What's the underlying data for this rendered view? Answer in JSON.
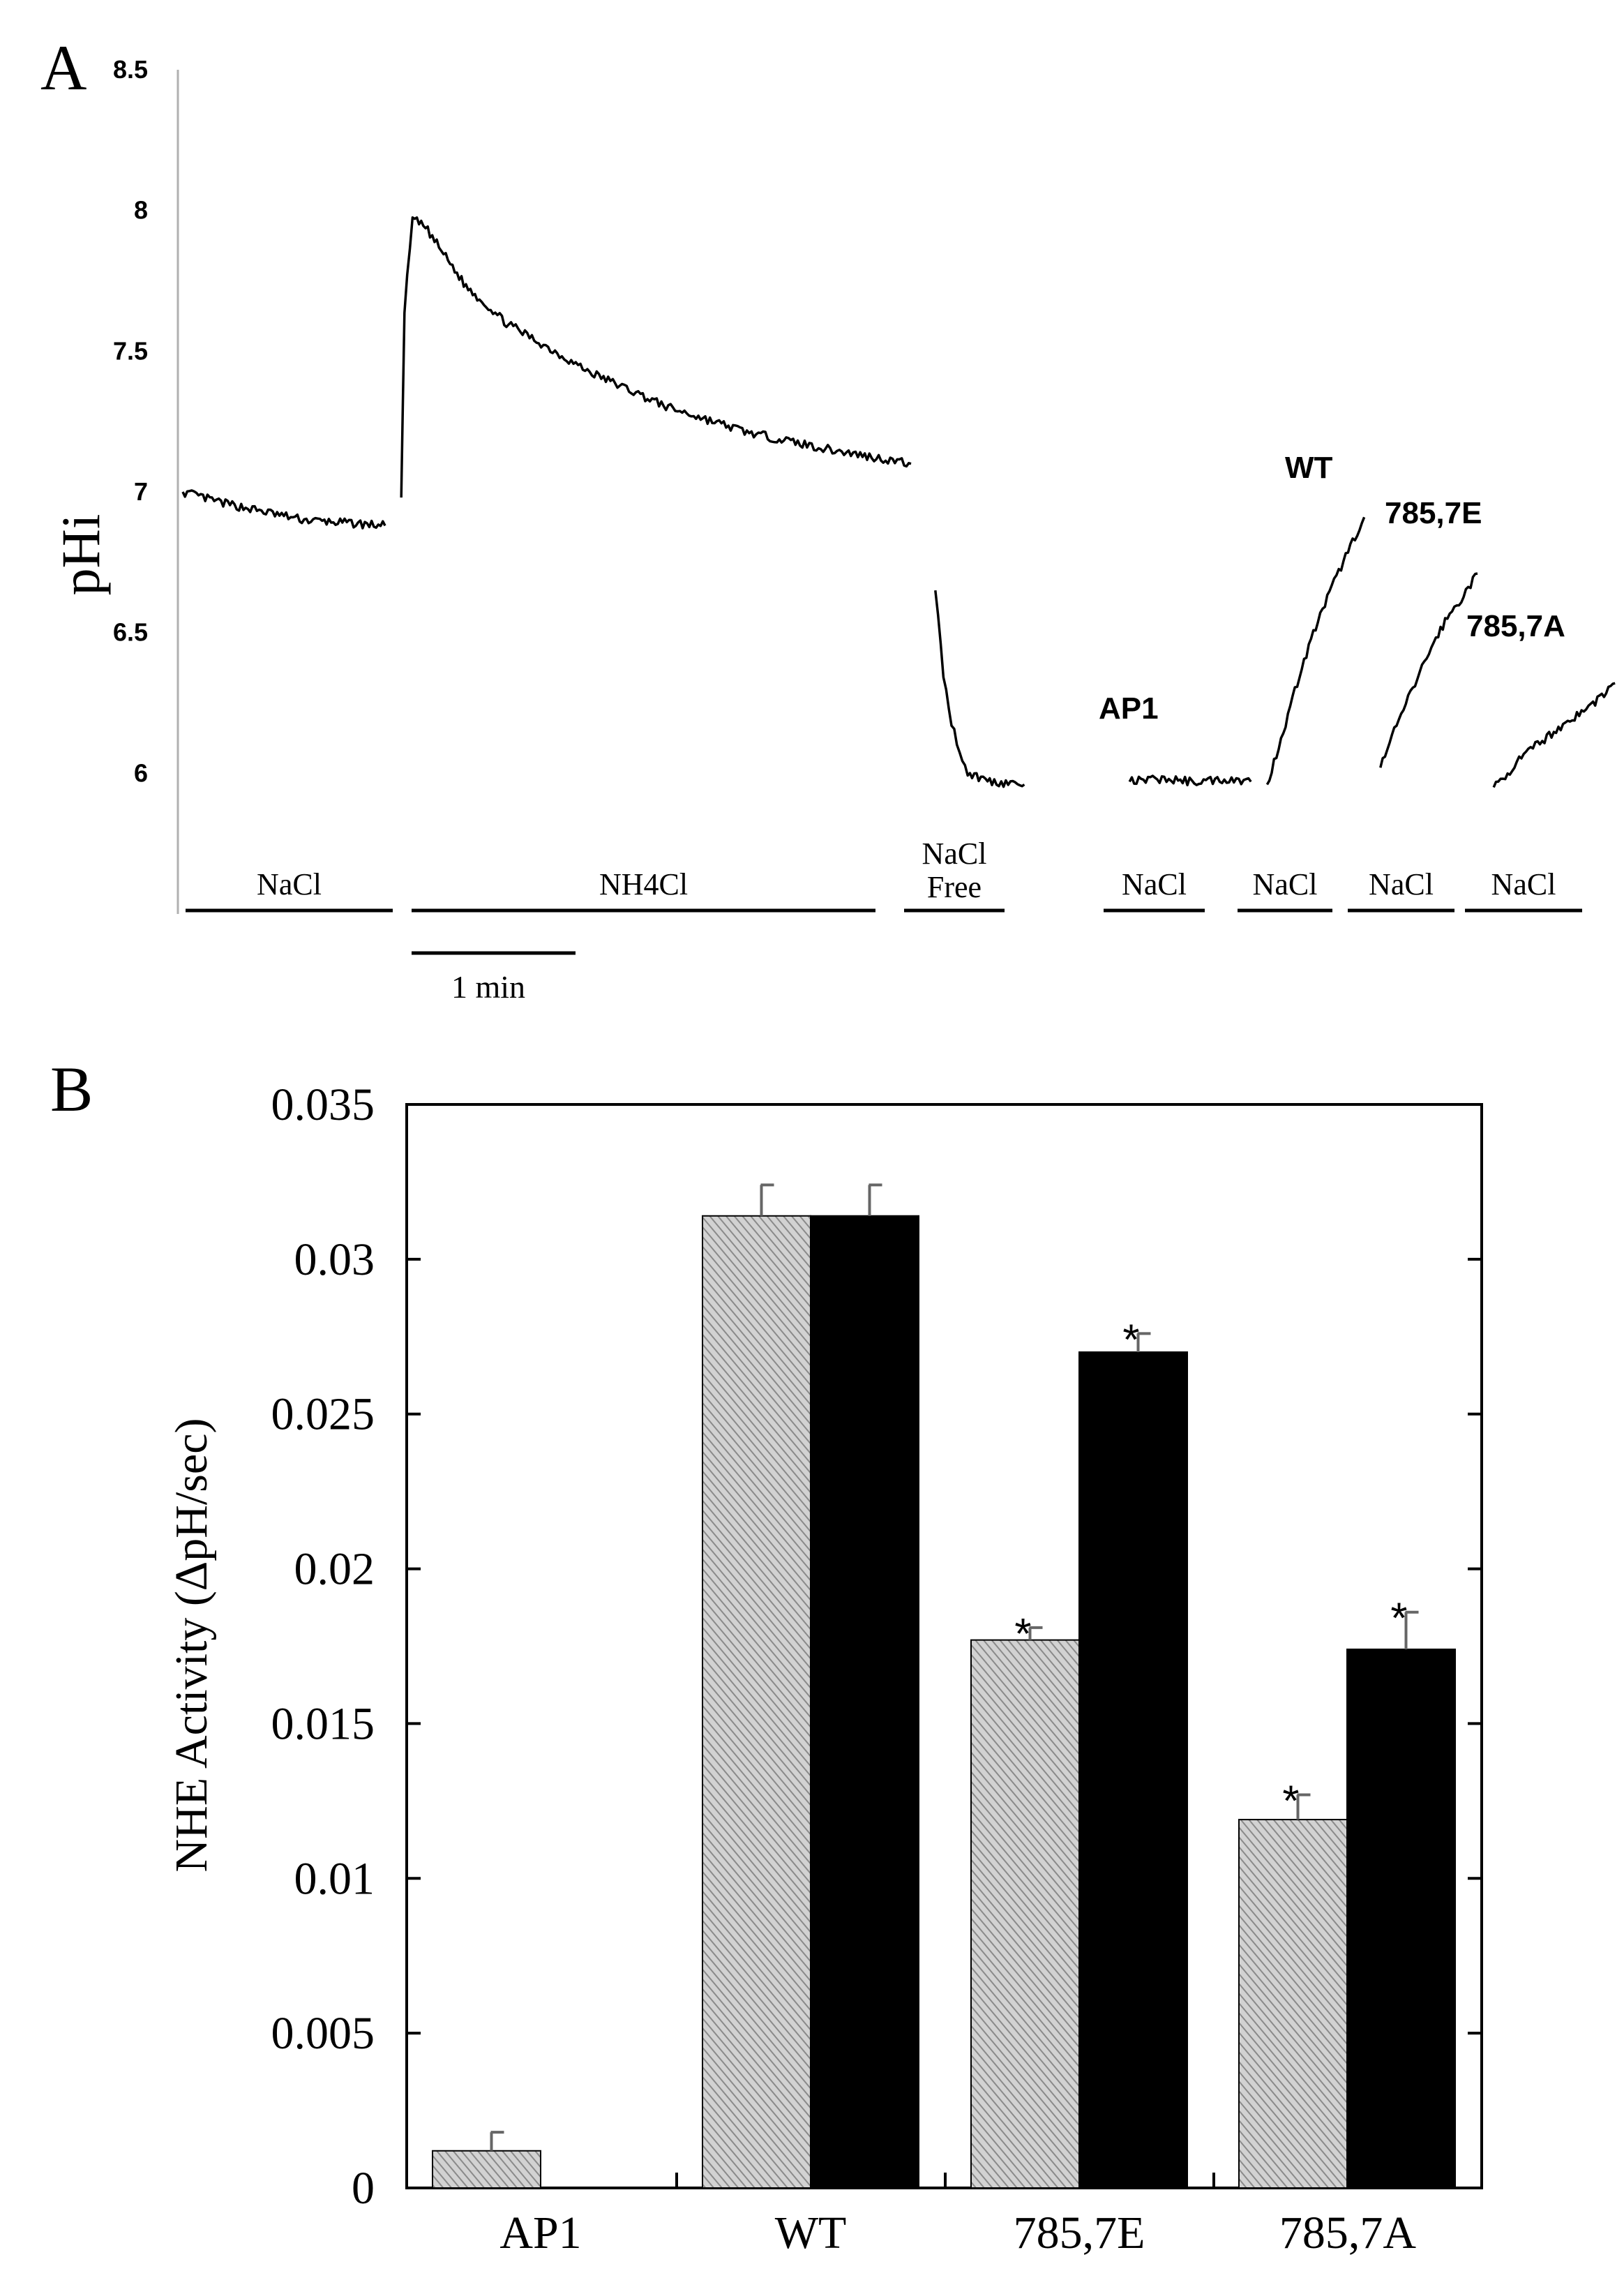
{
  "chart_data": [
    {
      "panel": "A",
      "type": "line",
      "ylabel": "pHi",
      "ylim": [
        5.5,
        8.5
      ],
      "yticks": [
        "6",
        "6.5",
        "7",
        "7.5",
        "8",
        "8.5"
      ],
      "series": [
        {
          "name": "NaCl baseline",
          "x": [
            0,
            0.25,
            0.5,
            0.75,
            1.0,
            1.25
          ],
          "y": [
            7.0,
            6.96,
            6.93,
            6.9,
            6.89,
            6.88
          ]
        },
        {
          "name": "NH4Cl pulse",
          "x": [
            1.35,
            1.37,
            1.42,
            1.5,
            1.75,
            2.0,
            2.5,
            3.0,
            3.5,
            4.0,
            4.5
          ],
          "y": [
            6.98,
            7.65,
            7.97,
            7.94,
            7.73,
            7.6,
            7.43,
            7.3,
            7.21,
            7.15,
            7.1
          ]
        },
        {
          "name": "NaCl free",
          "x": [
            4.65,
            4.7,
            4.75,
            4.8,
            4.85,
            5.0,
            5.2
          ],
          "y": [
            6.65,
            6.35,
            6.18,
            6.08,
            6.0,
            5.97,
            5.96
          ]
        },
        {
          "name": "AP1",
          "x": [
            5.85,
            6.05,
            6.25,
            6.45,
            6.6
          ],
          "y": [
            5.97,
            5.98,
            5.97,
            5.98,
            5.97
          ]
        },
        {
          "name": "WT",
          "x": [
            6.7,
            6.8,
            6.9,
            7.0,
            7.1,
            7.2,
            7.3
          ],
          "y": [
            5.96,
            6.15,
            6.35,
            6.52,
            6.66,
            6.79,
            6.91
          ]
        },
        {
          "name": "785,7E",
          "x": [
            7.4,
            7.5,
            7.6,
            7.7,
            7.8,
            7.9,
            8.0
          ],
          "y": [
            6.02,
            6.17,
            6.3,
            6.43,
            6.54,
            6.62,
            6.71
          ]
        },
        {
          "name": "785,7A",
          "x": [
            8.1,
            8.3,
            8.5,
            8.7,
            8.85
          ],
          "y": [
            5.95,
            6.07,
            6.16,
            6.24,
            6.32
          ]
        }
      ],
      "series_labels": [
        "AP1",
        "WT",
        "785,7E",
        "785,7A"
      ],
      "condition_bars": [
        "NaCl",
        "NH4Cl",
        "NaCl Free",
        "NaCl",
        "NaCl",
        "NaCl",
        "NaCl"
      ],
      "scale_bar_label": "1 min"
    },
    {
      "panel": "B",
      "type": "bar",
      "ylabel": "NHE Activity (ΔpH/sec)",
      "ylim": [
        0,
        0.035
      ],
      "yticks": [
        "0",
        "0.005",
        "0.01",
        "0.015",
        "0.02",
        "0.025",
        "0.03",
        "0.035"
      ],
      "categories": [
        "AP1",
        "WT",
        "785,7E",
        "785,7A"
      ],
      "series": [
        {
          "name": "hatched",
          "color": "#a9a9a9",
          "values": [
            0.0012,
            0.0314,
            0.0177,
            0.0119
          ],
          "errors": [
            0.0006,
            0.001,
            0.0004,
            0.0008
          ],
          "significant": [
            false,
            false,
            true,
            true
          ]
        },
        {
          "name": "solid",
          "color": "#000000",
          "values": [
            null,
            0.0314,
            0.027,
            0.0174
          ],
          "errors": [
            null,
            0.001,
            0.0006,
            0.0012
          ],
          "significant": [
            false,
            false,
            true,
            true
          ]
        }
      ],
      "significance_mark": "*"
    }
  ],
  "panel_letters": [
    "A",
    "B"
  ]
}
